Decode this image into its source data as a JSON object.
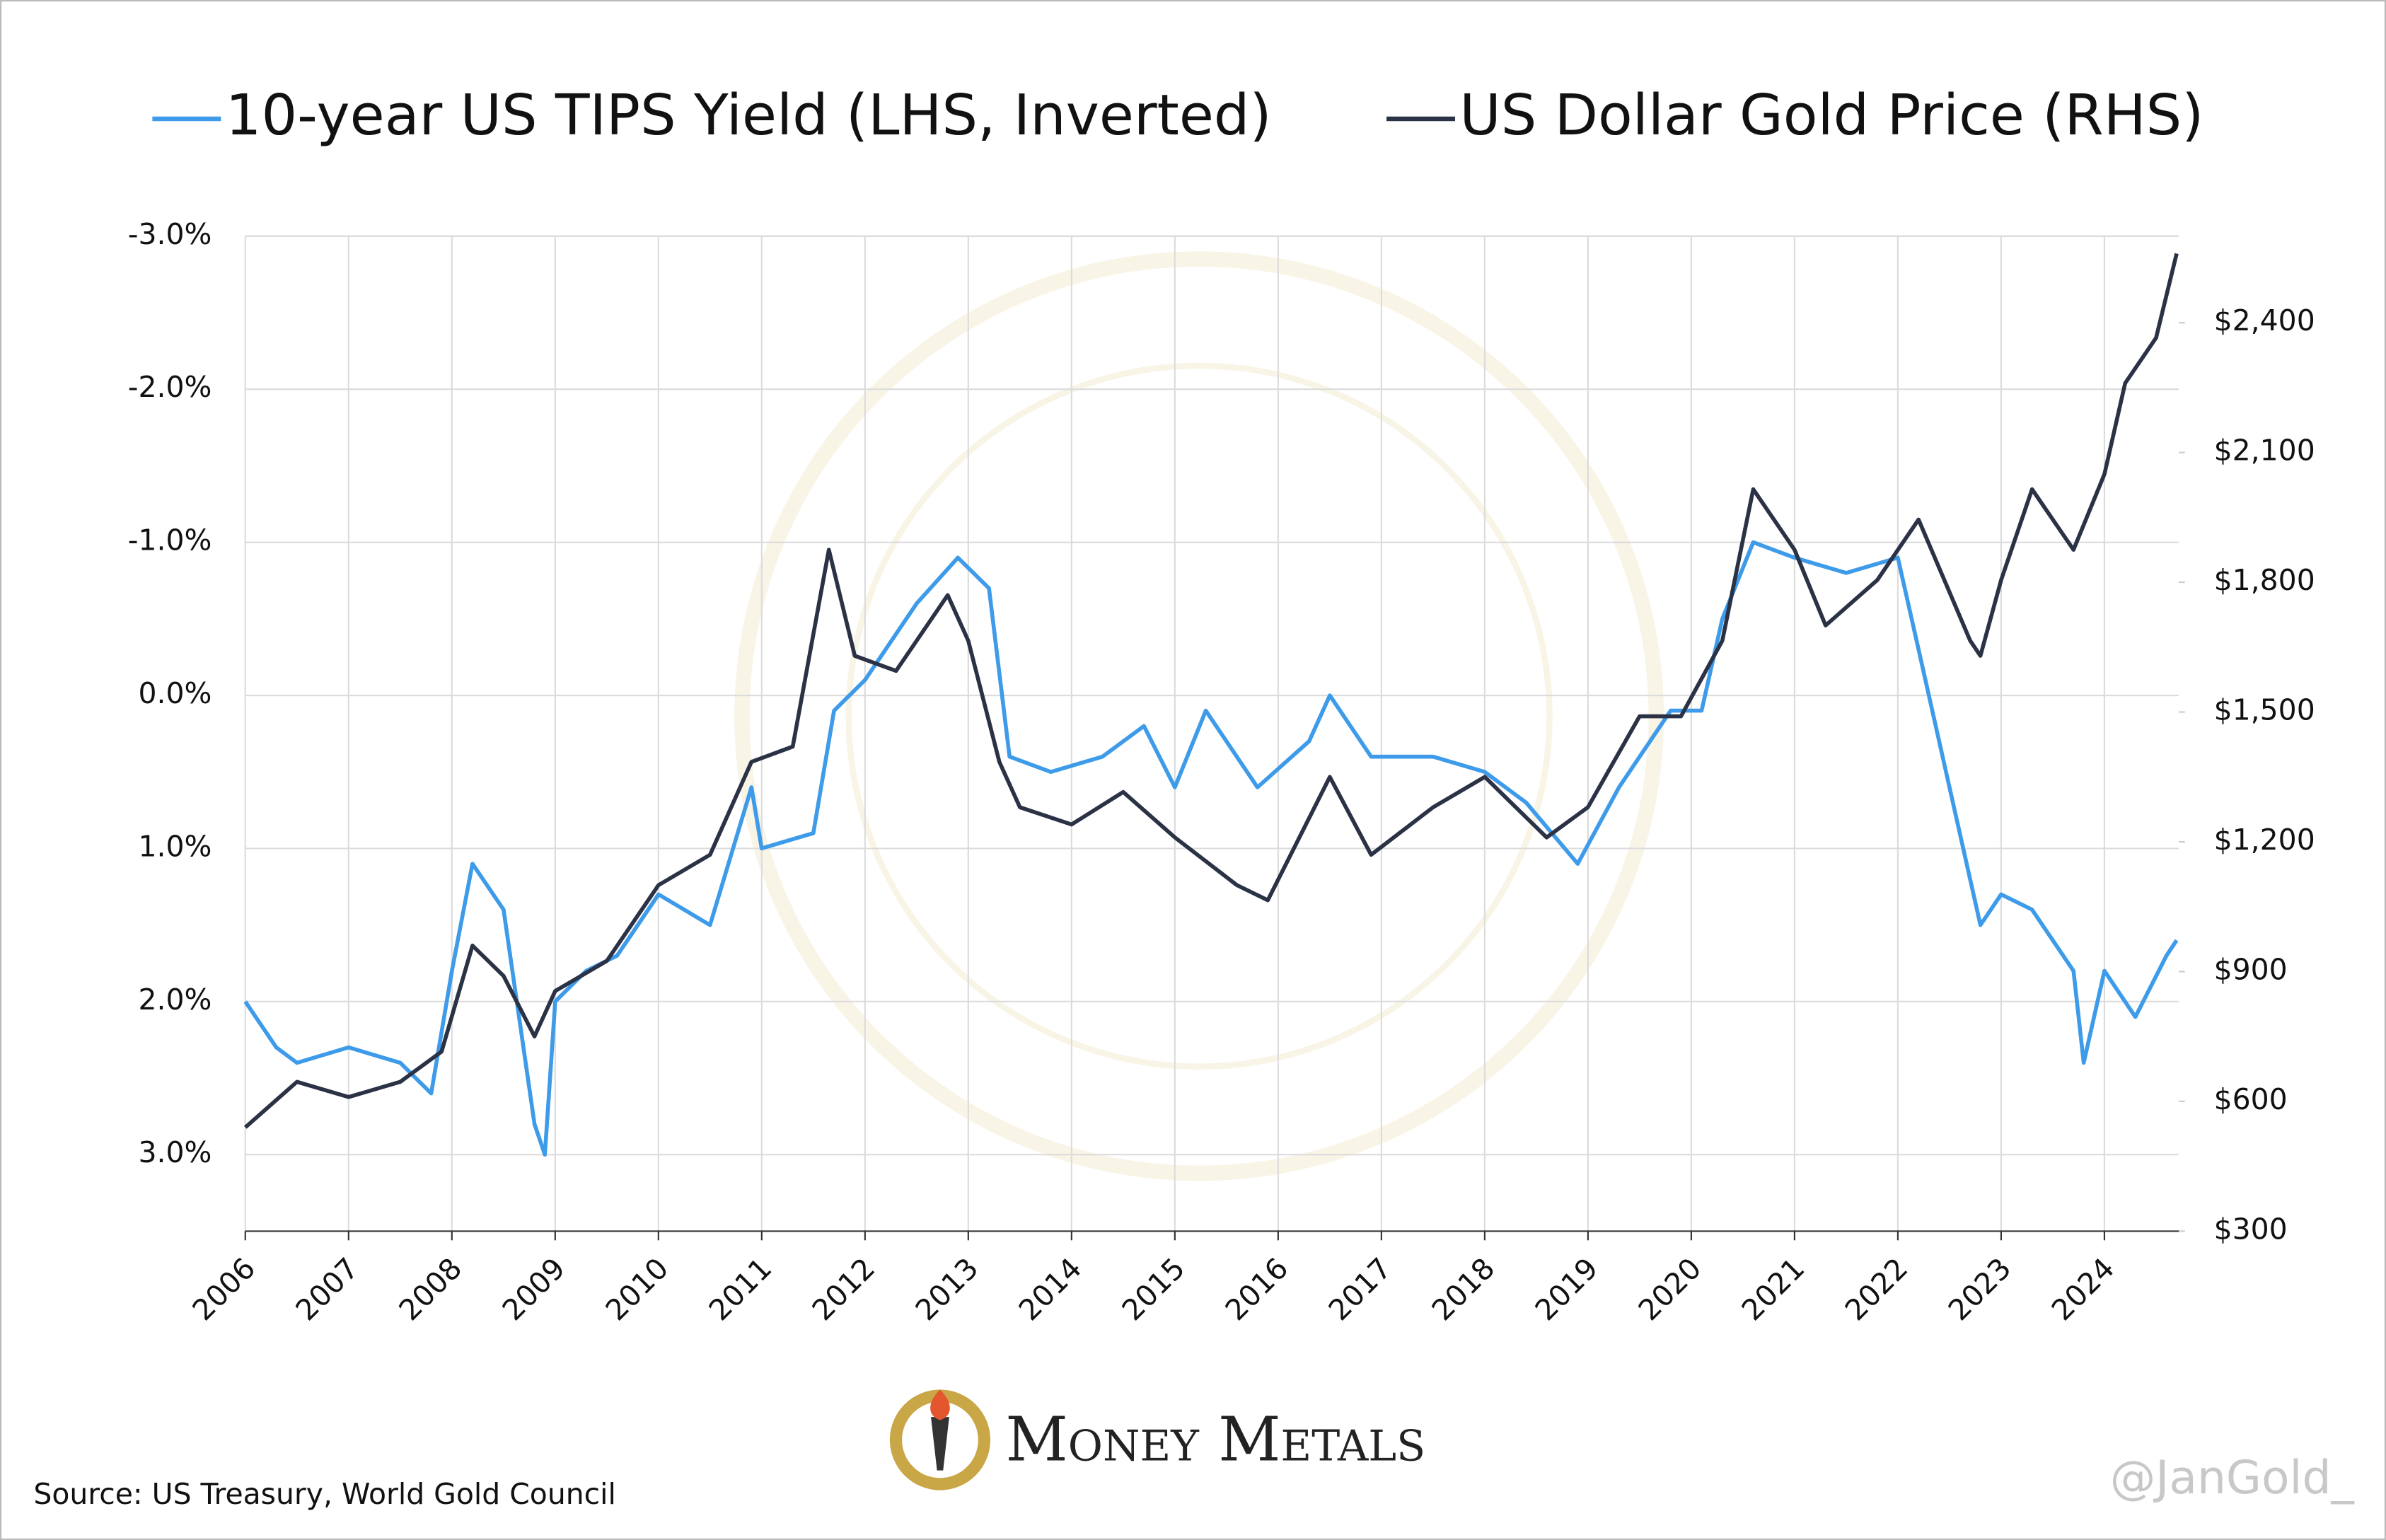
{
  "chart_data": {
    "type": "line",
    "x": null,
    "series": [
      {
        "name": "10-year US TIPS Yield (LHS, Inverted)",
        "color": "#3d9be9",
        "x": [
          2006.0,
          2006.3,
          2006.5,
          2007.0,
          2007.5,
          2007.8,
          2008.0,
          2008.2,
          2008.5,
          2008.8,
          2008.9,
          2009.0,
          2009.3,
          2009.6,
          2010.0,
          2010.5,
          2010.9,
          2011.0,
          2011.5,
          2011.7,
          2012.0,
          2012.5,
          2012.9,
          2013.2,
          2013.4,
          2013.8,
          2014.3,
          2014.7,
          2015.0,
          2015.3,
          2015.8,
          2016.3,
          2016.5,
          2016.9,
          2017.5,
          2018.0,
          2018.4,
          2018.9,
          2019.3,
          2019.8,
          2020.1,
          2020.3,
          2020.6,
          2021.0,
          2021.5,
          2022.0,
          2022.2,
          2022.5,
          2022.8,
          2023.0,
          2023.3,
          2023.7,
          2023.8,
          2024.0,
          2024.3,
          2024.6,
          2024.7
        ],
        "values": [
          2.0,
          2.3,
          2.4,
          2.3,
          2.4,
          2.6,
          1.8,
          1.1,
          1.4,
          2.8,
          3.0,
          2.0,
          1.8,
          1.7,
          1.3,
          1.5,
          0.6,
          1.0,
          0.9,
          0.1,
          -0.1,
          -0.6,
          -0.9,
          -0.7,
          0.4,
          0.5,
          0.4,
          0.2,
          0.6,
          0.1,
          0.6,
          0.3,
          0.0,
          0.4,
          0.4,
          0.5,
          0.7,
          1.1,
          0.6,
          0.1,
          0.1,
          -0.5,
          -1.0,
          -0.9,
          -0.8,
          -0.9,
          -0.3,
          0.6,
          1.5,
          1.3,
          1.4,
          1.8,
          2.4,
          1.8,
          2.1,
          1.7,
          1.6
        ]
      },
      {
        "name": "US Dollar Gold Price (RHS)",
        "color": "#2b3245",
        "axis": "y2",
        "x": [
          2006.0,
          2006.5,
          2007.0,
          2007.5,
          2007.9,
          2008.2,
          2008.5,
          2008.8,
          2009.0,
          2009.5,
          2010.0,
          2010.5,
          2010.9,
          2011.3,
          2011.65,
          2011.9,
          2012.3,
          2012.8,
          2013.0,
          2013.3,
          2013.5,
          2014.0,
          2014.5,
          2015.0,
          2015.6,
          2015.9,
          2016.5,
          2016.9,
          2017.5,
          2018.0,
          2018.6,
          2019.0,
          2019.5,
          2019.9,
          2020.3,
          2020.6,
          2021.0,
          2021.3,
          2021.8,
          2022.2,
          2022.7,
          2022.8,
          2023.0,
          2023.3,
          2023.7,
          2024.0,
          2024.2,
          2024.5,
          2024.7
        ],
        "values": [
          540,
          645,
          610,
          645,
          715,
          960,
          890,
          750,
          855,
          925,
          1100,
          1170,
          1385,
          1420,
          1875,
          1630,
          1595,
          1770,
          1665,
          1385,
          1280,
          1240,
          1315,
          1210,
          1100,
          1065,
          1350,
          1170,
          1280,
          1350,
          1210,
          1280,
          1490,
          1490,
          1665,
          2015,
          1875,
          1700,
          1805,
          1945,
          1665,
          1630,
          1805,
          2015,
          1875,
          2050,
          2260,
          2365,
          2560
        ]
      }
    ],
    "xlim": [
      2006,
      2024.72
    ],
    "xticks": [
      2006,
      2007,
      2008,
      2009,
      2010,
      2011,
      2012,
      2013,
      2014,
      2015,
      2016,
      2017,
      2018,
      2019,
      2020,
      2021,
      2022,
      2023,
      2024
    ],
    "ylim": [
      3.5,
      -3.0
    ],
    "yticks": [
      {
        "value": -3,
        "label": "-3.0%"
      },
      {
        "value": -2,
        "label": "-2.0%"
      },
      {
        "value": -1,
        "label": "-1.0%"
      },
      {
        "value": 0,
        "label": "0.0%"
      },
      {
        "value": 1,
        "label": "1.0%"
      },
      {
        "value": 2,
        "label": "2.0%"
      },
      {
        "value": 3,
        "label": "3.0%"
      }
    ],
    "y2lim": [
      300,
      2600
    ],
    "y2ticks": [
      {
        "value": 300,
        "label": "$300"
      },
      {
        "value": 600,
        "label": "$600"
      },
      {
        "value": 900,
        "label": "$900"
      },
      {
        "value": 1200,
        "label": "$1,200"
      },
      {
        "value": 1500,
        "label": "$1,500"
      },
      {
        "value": 1800,
        "label": "$1,800"
      },
      {
        "value": 2100,
        "label": "$2,100"
      },
      {
        "value": 2400,
        "label": "$2,400"
      }
    ],
    "grid": true,
    "source": "Source: US Treasury, World Gold Council",
    "logo_text": "Money Metals",
    "watermark": "@JanGold_"
  }
}
